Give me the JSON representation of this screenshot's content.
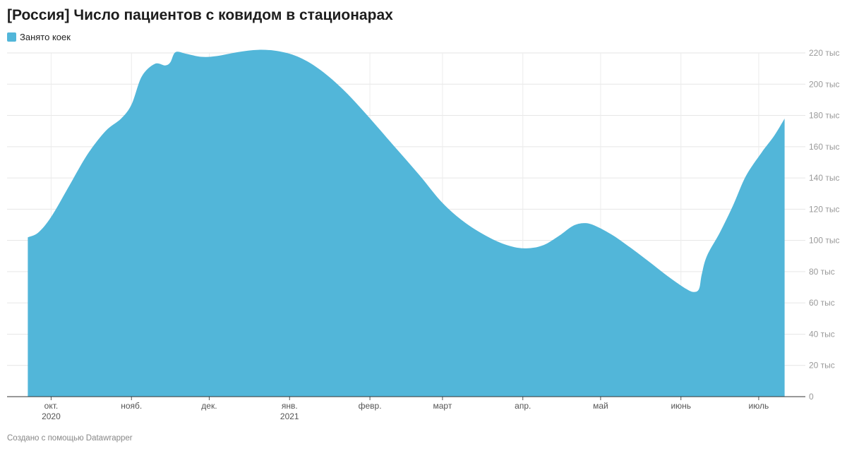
{
  "title": "[Россия] Число пациентов с ковидом в стационарах",
  "legend": {
    "label": "Занято коек",
    "color": "#52b6d9"
  },
  "footer": "Создано с помощью Datawrapper",
  "chart_data": {
    "type": "area",
    "title": "[Россия] Число пациентов с ковидом в стационарах",
    "xlabel": "",
    "ylabel": "",
    "ylim": [
      0,
      220000
    ],
    "grid": true,
    "legend_position": "top-left",
    "y_ticks": [
      {
        "value": 0,
        "label": "0"
      },
      {
        "value": 20000,
        "label": "20 тыс"
      },
      {
        "value": 40000,
        "label": "40 тыс"
      },
      {
        "value": 60000,
        "label": "60 тыс"
      },
      {
        "value": 80000,
        "label": "80 тыс"
      },
      {
        "value": 100000,
        "label": "100 тыс"
      },
      {
        "value": 120000,
        "label": "120 тыс"
      },
      {
        "value": 140000,
        "label": "140 тыс"
      },
      {
        "value": 160000,
        "label": "160 тыс"
      },
      {
        "value": 180000,
        "label": "180 тыс"
      },
      {
        "value": 200000,
        "label": "200 тыс"
      },
      {
        "value": 220000,
        "label": "220 тыс"
      }
    ],
    "x_ticks": [
      {
        "date": "2020-10-01",
        "label": "окт.",
        "sublabel": "2020"
      },
      {
        "date": "2020-11-01",
        "label": "нояб.",
        "sublabel": ""
      },
      {
        "date": "2020-12-01",
        "label": "дек.",
        "sublabel": ""
      },
      {
        "date": "2021-01-01",
        "label": "янв.",
        "sublabel": "2021"
      },
      {
        "date": "2021-02-01",
        "label": "февр.",
        "sublabel": ""
      },
      {
        "date": "2021-03-01",
        "label": "март",
        "sublabel": ""
      },
      {
        "date": "2021-04-01",
        "label": "апр.",
        "sublabel": ""
      },
      {
        "date": "2021-05-01",
        "label": "май",
        "sublabel": ""
      },
      {
        "date": "2021-06-01",
        "label": "июнь",
        "sublabel": ""
      },
      {
        "date": "2021-07-01",
        "label": "июль",
        "sublabel": ""
      }
    ],
    "series": [
      {
        "name": "Занято коек",
        "color": "#52b6d9",
        "points": [
          [
            "2020-09-22",
            102000
          ],
          [
            "2020-09-26",
            105000
          ],
          [
            "2020-10-01",
            115000
          ],
          [
            "2020-10-08",
            135000
          ],
          [
            "2020-10-15",
            155000
          ],
          [
            "2020-10-22",
            170000
          ],
          [
            "2020-10-28",
            178000
          ],
          [
            "2020-11-01",
            187000
          ],
          [
            "2020-11-05",
            205000
          ],
          [
            "2020-11-10",
            213000
          ],
          [
            "2020-11-14",
            212000
          ],
          [
            "2020-11-16",
            214000
          ],
          [
            "2020-11-18",
            220500
          ],
          [
            "2020-11-22",
            219500
          ],
          [
            "2020-11-28",
            217500
          ],
          [
            "2020-12-04",
            218000
          ],
          [
            "2020-12-12",
            220500
          ],
          [
            "2020-12-20",
            222000
          ],
          [
            "2020-12-28",
            221000
          ],
          [
            "2021-01-05",
            217000
          ],
          [
            "2021-01-13",
            209000
          ],
          [
            "2021-01-22",
            196000
          ],
          [
            "2021-01-31",
            180000
          ],
          [
            "2021-02-10",
            161000
          ],
          [
            "2021-02-20",
            142000
          ],
          [
            "2021-03-01",
            124000
          ],
          [
            "2021-03-10",
            111000
          ],
          [
            "2021-03-20",
            101000
          ],
          [
            "2021-03-28",
            96000
          ],
          [
            "2021-04-03",
            95000
          ],
          [
            "2021-04-09",
            97000
          ],
          [
            "2021-04-15",
            103000
          ],
          [
            "2021-04-20",
            109000
          ],
          [
            "2021-04-24",
            111000
          ],
          [
            "2021-04-28",
            110000
          ],
          [
            "2021-05-05",
            104000
          ],
          [
            "2021-05-12",
            96000
          ],
          [
            "2021-05-20",
            86000
          ],
          [
            "2021-05-27",
            77000
          ],
          [
            "2021-06-03",
            69000
          ],
          [
            "2021-06-06",
            67000
          ],
          [
            "2021-06-08",
            69000
          ],
          [
            "2021-06-09",
            78000
          ],
          [
            "2021-06-11",
            90000
          ],
          [
            "2021-06-16",
            105000
          ],
          [
            "2021-06-21",
            122000
          ],
          [
            "2021-06-26",
            141000
          ],
          [
            "2021-07-02",
            156000
          ],
          [
            "2021-07-07",
            167000
          ],
          [
            "2021-07-11",
            178000
          ]
        ]
      }
    ]
  }
}
